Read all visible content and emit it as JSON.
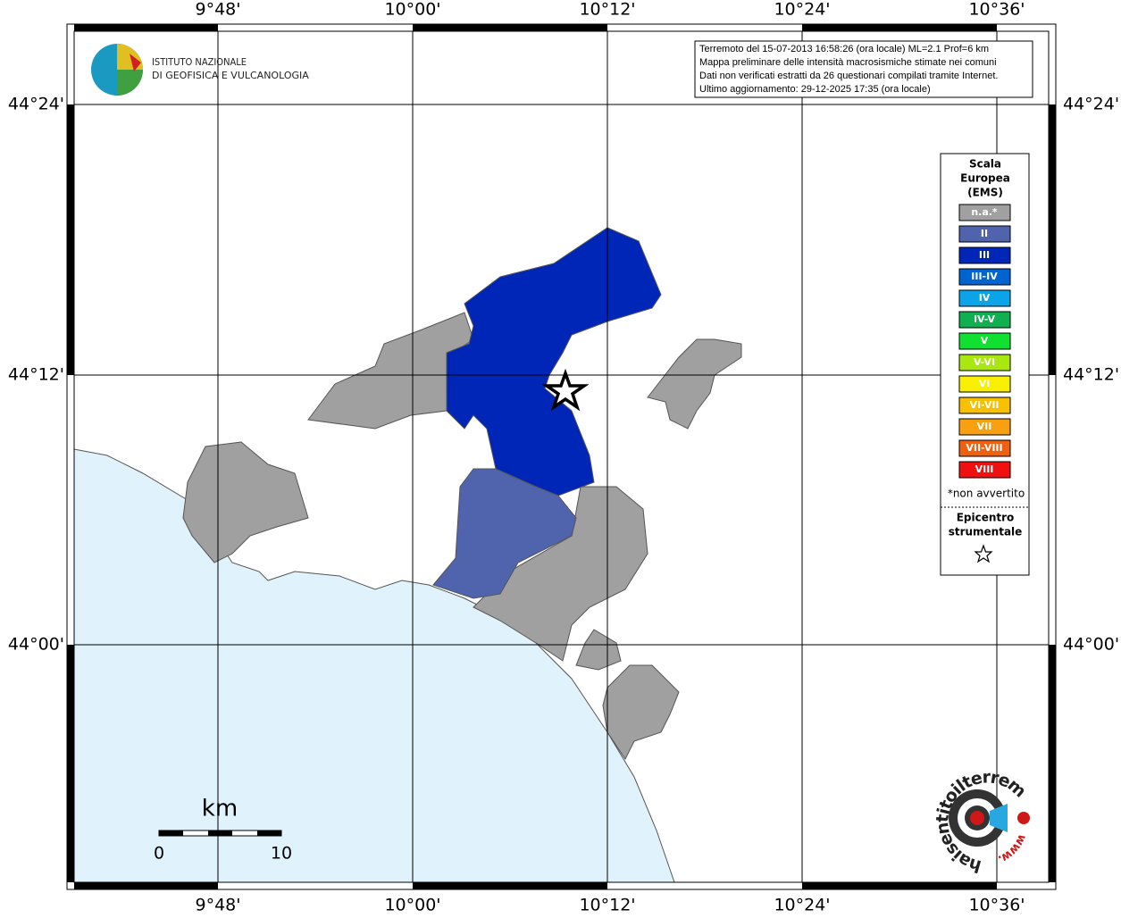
{
  "axes": {
    "top": [
      "9°48'",
      "10°00'",
      "10°12'",
      "10°24'",
      "10°36'"
    ],
    "bottom": [
      "9°48'",
      "10°00'",
      "10°12'",
      "10°24'",
      "10°36'"
    ],
    "left": [
      "44°24'",
      "44°12'",
      "44°00'"
    ],
    "right": [
      "44°24'",
      "44°12'",
      "44°00'"
    ]
  },
  "logo": {
    "lines": [
      "ISTITUTO NAZIONALE",
      "DI GEOFISICA E VULCANOLOGIA"
    ]
  },
  "info": [
    "Terremoto del 15-07-2013 16:58:26 (ora locale) ML=2.1 Prof=6 km",
    "Mappa preliminare delle intensità macrosismiche stimate nei comuni",
    "Dati non verificati estratti da 26 questionari compilati tramite Internet.",
    "Ultimo aggiornamento: 29-12-2025 17:35 (ora locale)"
  ],
  "legend": {
    "title": [
      "Scala",
      "Europea",
      "(EMS)"
    ],
    "items": [
      {
        "label": "n.a.*",
        "color": "#a0a0a0"
      },
      {
        "label": "II",
        "color": "#4f64ad"
      },
      {
        "label": "III",
        "color": "#0026b8"
      },
      {
        "label": "III-IV",
        "color": "#0064d0"
      },
      {
        "label": "IV",
        "color": "#0ca4e8"
      },
      {
        "label": "IV-V",
        "color": "#10b050"
      },
      {
        "label": "V",
        "color": "#10e030"
      },
      {
        "label": "V-VI",
        "color": "#a8e810"
      },
      {
        "label": "VI",
        "color": "#f8f000"
      },
      {
        "label": "VI-VII",
        "color": "#f8c000"
      },
      {
        "label": "VII",
        "color": "#f8a010"
      },
      {
        "label": "VII-VIII",
        "color": "#f06010"
      },
      {
        "label": "VIII",
        "color": "#f01010"
      }
    ],
    "note": "*non avvertito",
    "epicenter": [
      "Epicentro",
      "strumentale"
    ]
  },
  "scale": {
    "unit": "km",
    "labels": [
      "0",
      "10"
    ]
  },
  "brand": {
    "text": "haisentitoilterremoto.it",
    "prefix": "www."
  }
}
